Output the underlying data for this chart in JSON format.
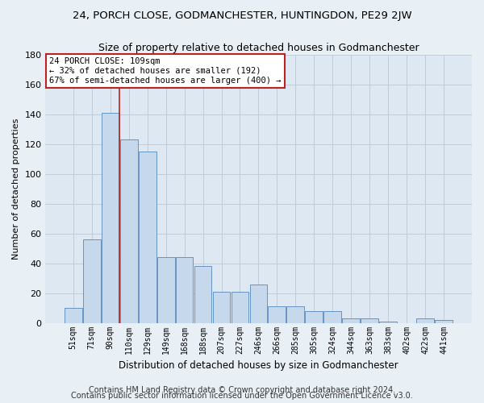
{
  "title": "24, PORCH CLOSE, GODMANCHESTER, HUNTINGDON, PE29 2JW",
  "subtitle": "Size of property relative to detached houses in Godmanchester",
  "xlabel": "Distribution of detached houses by size in Godmanchester",
  "ylabel": "Number of detached properties",
  "categories": [
    "51sqm",
    "71sqm",
    "90sqm",
    "110sqm",
    "129sqm",
    "149sqm",
    "168sqm",
    "188sqm",
    "207sqm",
    "227sqm",
    "246sqm",
    "266sqm",
    "285sqm",
    "305sqm",
    "324sqm",
    "344sqm",
    "363sqm",
    "383sqm",
    "402sqm",
    "422sqm",
    "441sqm"
  ],
  "values": [
    10,
    56,
    141,
    123,
    115,
    44,
    44,
    38,
    21,
    21,
    26,
    11,
    11,
    8,
    8,
    3,
    3,
    1,
    0,
    3,
    2
  ],
  "bar_color": "#c5d8ec",
  "bar_edge_color": "#5588bb",
  "vline_x": 2.5,
  "vline_color": "#bb2222",
  "annotation_line1": "24 PORCH CLOSE: 109sqm",
  "annotation_line2": "← 32% of detached houses are smaller (192)",
  "annotation_line3": "67% of semi-detached houses are larger (400) →",
  "annotation_box_facecolor": "#ffffff",
  "annotation_box_edgecolor": "#bb2222",
  "ylim": [
    0,
    180
  ],
  "yticks": [
    0,
    20,
    40,
    60,
    80,
    100,
    120,
    140,
    160,
    180
  ],
  "plot_bg_color": "#dde8f2",
  "fig_bg_color": "#e8eff5",
  "grid_color": "#c0cdd8",
  "footer1": "Contains HM Land Registry data © Crown copyright and database right 2024.",
  "footer2": "Contains public sector information licensed under the Open Government Licence v3.0."
}
